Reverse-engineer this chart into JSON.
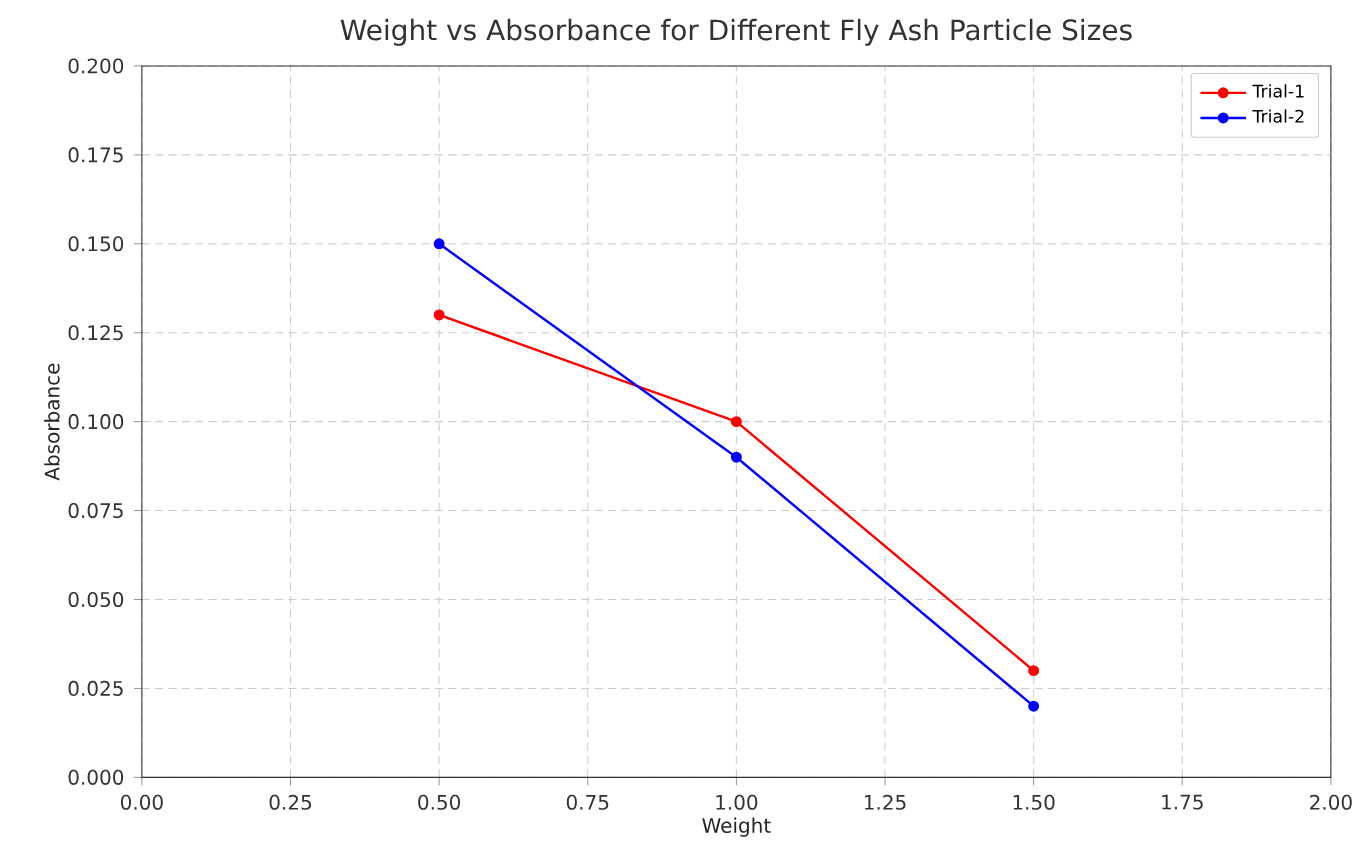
{
  "chart_data": {
    "type": "line",
    "title": "Weight vs Absorbance for Different Fly Ash Particle Sizes",
    "xlabel": "Weight",
    "ylabel": "Absorbance",
    "x": [
      0.5,
      1.0,
      1.5
    ],
    "series": [
      {
        "name": "Trial-1",
        "color": "#ff0000",
        "values": [
          0.13,
          0.1,
          0.03
        ]
      },
      {
        "name": "Trial-2",
        "color": "#0000ff",
        "values": [
          0.15,
          0.09,
          0.02
        ]
      }
    ],
    "xlim": [
      0,
      2
    ],
    "ylim": [
      0,
      0.2
    ],
    "xticks": [
      {
        "value": 0,
        "label": "0.00"
      },
      {
        "value": 0.25,
        "label": "0.25"
      },
      {
        "value": 0.5,
        "label": "0.50"
      },
      {
        "value": 0.75,
        "label": "0.75"
      },
      {
        "value": 1.0,
        "label": "1.00"
      },
      {
        "value": 1.25,
        "label": "1.25"
      },
      {
        "value": 1.5,
        "label": "1.50"
      },
      {
        "value": 1.75,
        "label": "1.75"
      },
      {
        "value": 2.0,
        "label": "2.00"
      }
    ],
    "yticks": [
      {
        "value": 0,
        "label": "0.000"
      },
      {
        "value": 0.025,
        "label": "0.025"
      },
      {
        "value": 0.05,
        "label": "0.050"
      },
      {
        "value": 0.075,
        "label": "0.075"
      },
      {
        "value": 0.1,
        "label": "0.100"
      },
      {
        "value": 0.125,
        "label": "0.125"
      },
      {
        "value": 0.15,
        "label": "0.150"
      },
      {
        "value": 0.175,
        "label": "0.175"
      },
      {
        "value": 0.2,
        "label": "0.200"
      }
    ],
    "grid": true,
    "legend": "top right",
    "marker": "circle",
    "line_style": "solid"
  }
}
